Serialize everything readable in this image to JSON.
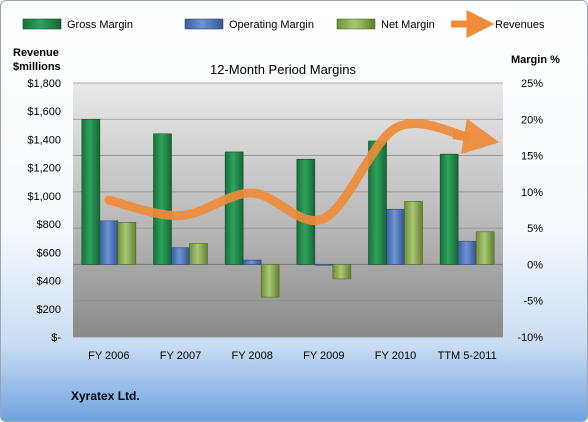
{
  "chart_data": {
    "type": "bar",
    "title": "12-Month Period Margins",
    "categories": [
      "FY 2006",
      "FY 2007",
      "FY 2008",
      "FY 2009",
      "FY 2010",
      "TTM 5-2011"
    ],
    "y_left": {
      "label_line1": "Revenue",
      "label_line2": "$millions",
      "ylim": [
        0,
        1800
      ],
      "ticks": [
        0,
        200,
        400,
        600,
        800,
        1000,
        1200,
        1400,
        1600,
        1800
      ],
      "tick_labels": [
        "$-",
        "$200",
        "$400",
        "$600",
        "$800",
        "$1,000",
        "$1,200",
        "$1,400",
        "$1,600",
        "$1,800"
      ]
    },
    "y_right": {
      "label": "Margin %",
      "ylim": [
        -10,
        25
      ],
      "ticks": [
        -10,
        -5,
        0,
        5,
        10,
        15,
        20,
        25
      ],
      "tick_labels": [
        "-10%",
        "-5%",
        "0%",
        "5%",
        "10%",
        "15%",
        "20%",
        "25%"
      ]
    },
    "series": [
      {
        "name": "Gross Margin",
        "kind": "bar",
        "axis": "right",
        "color": "#1e8a4a",
        "values": [
          20.0,
          18.0,
          15.5,
          14.5,
          17.0,
          15.2
        ]
      },
      {
        "name": "Operating Margin",
        "kind": "bar",
        "axis": "right",
        "color": "#4a72b8",
        "values": [
          6.0,
          2.3,
          0.6,
          -0.1,
          7.6,
          3.2
        ]
      },
      {
        "name": "Net Margin",
        "kind": "bar",
        "axis": "right",
        "color": "#8cae52",
        "values": [
          5.8,
          2.9,
          -4.5,
          -2.0,
          8.7,
          4.5
        ]
      },
      {
        "name": "Revenues",
        "kind": "line",
        "axis": "left",
        "color": "#ef8b3a",
        "values": [
          970,
          860,
          1020,
          840,
          1480,
          1420
        ]
      }
    ],
    "legend_position": "top",
    "grid": true
  },
  "footer": {
    "company": "Xyratex Ltd."
  }
}
